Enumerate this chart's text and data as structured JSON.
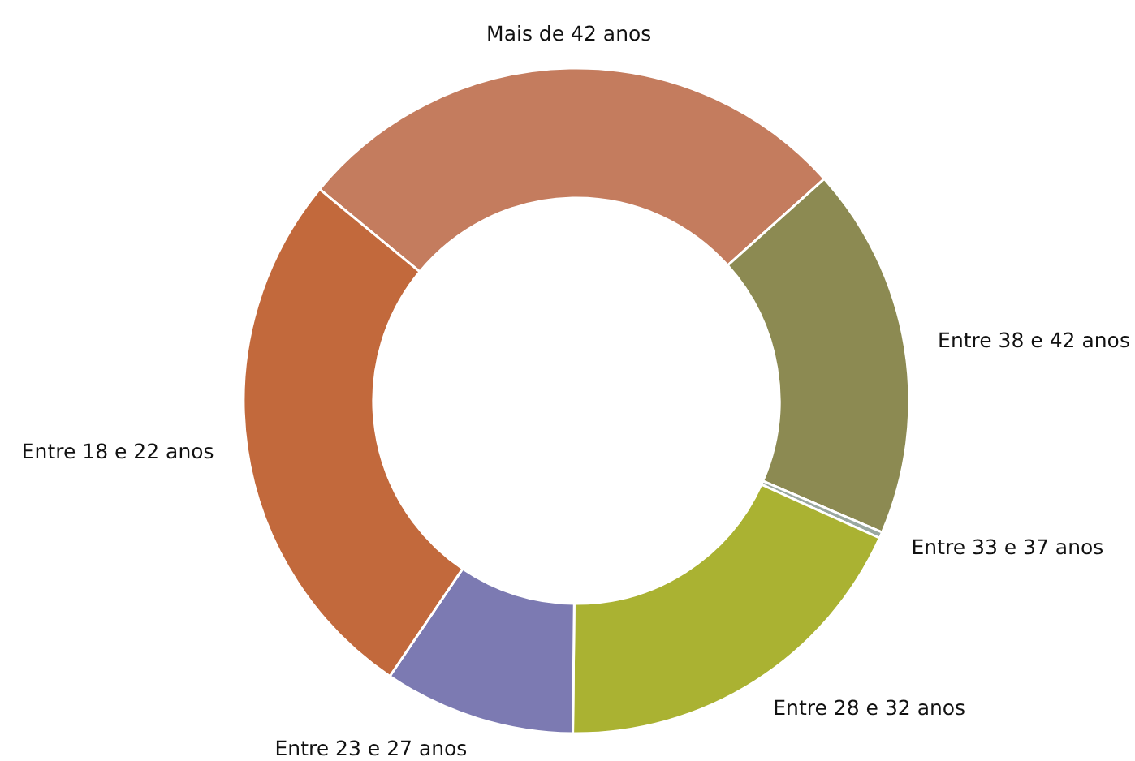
{
  "chart_data": {
    "type": "donut",
    "categories": [
      "Mais de 42 anos",
      "Entre 38 e 42 anos",
      "Entre 33 e 37 anos",
      "Entre 28 e 32 anos",
      "Entre 23 e 27 anos",
      "Entre 18 e 22 anos"
    ],
    "values": [
      27.4,
      18.1,
      0.3,
      18.4,
      9.3,
      26.5
    ],
    "colors": [
      "#c47c5e",
      "#8c8a52",
      "#9aa8a0",
      "#aab232",
      "#7c7ab2",
      "#c2693c"
    ]
  }
}
